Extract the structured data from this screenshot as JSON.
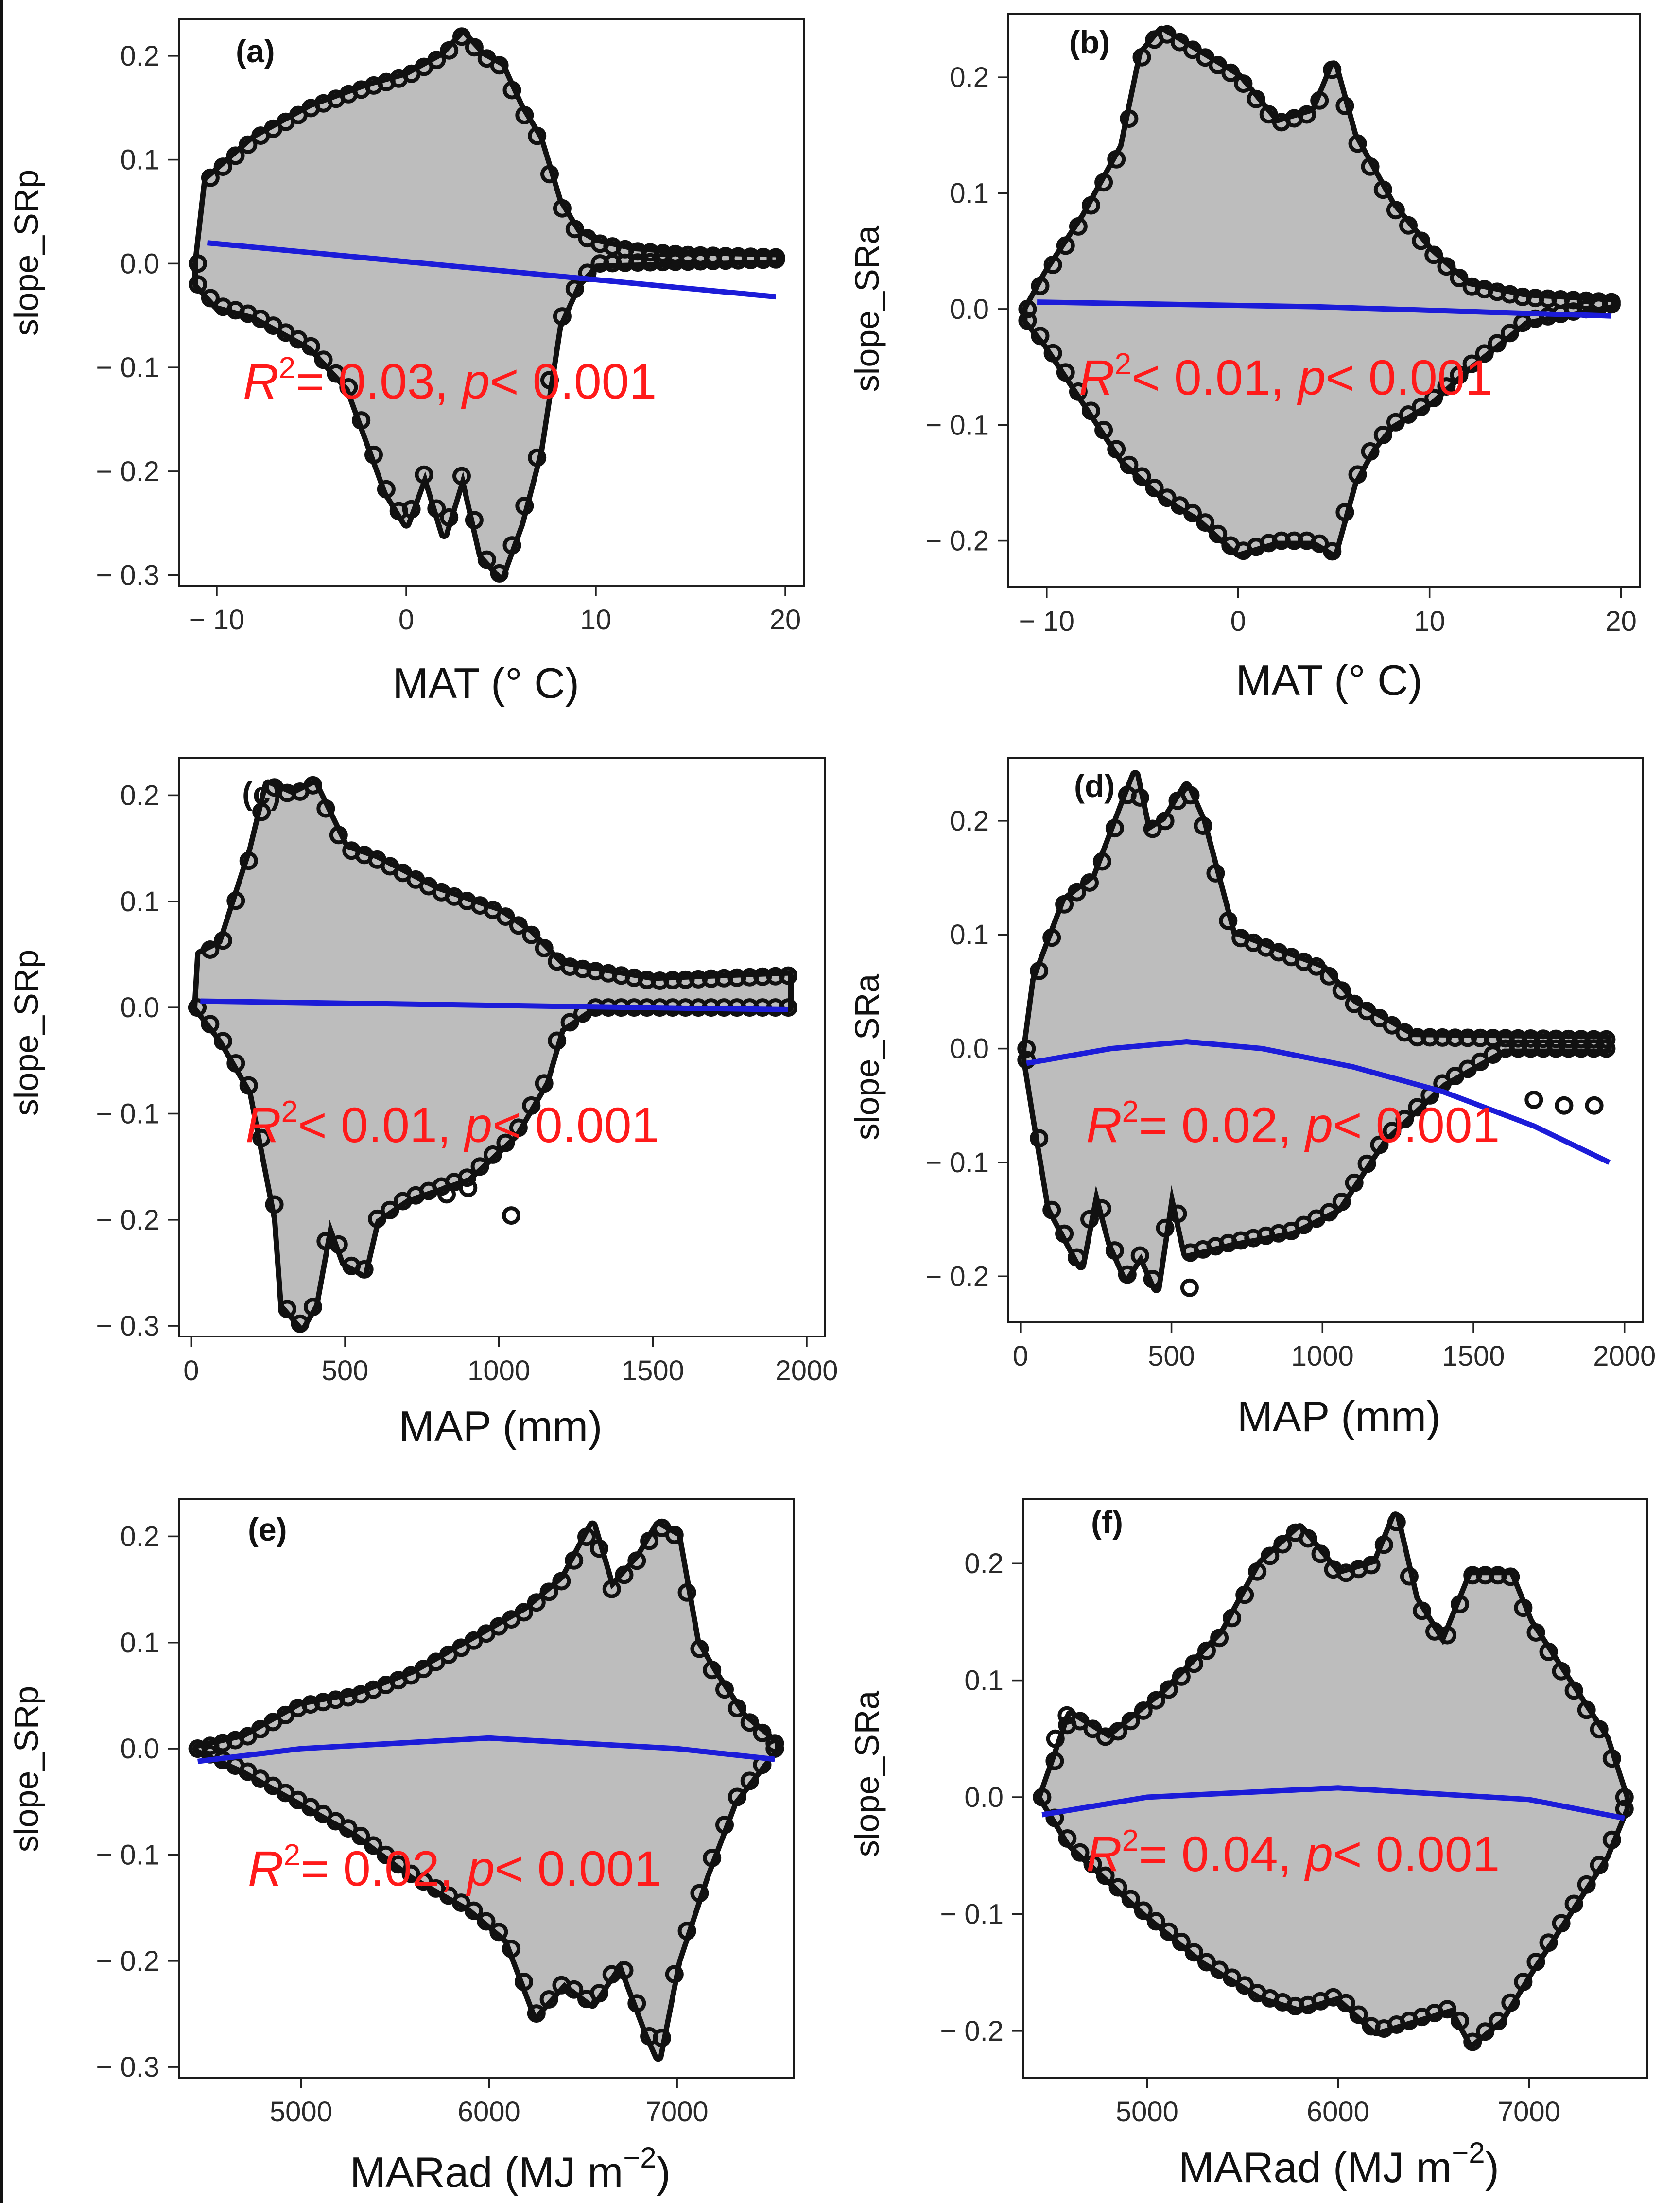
{
  "chart_data": [
    {
      "id": "a",
      "type": "scatter",
      "panel_label": "(a)",
      "xlabel": "MAT (° C)",
      "ylabel": "slope_SRp",
      "xlim": [
        -12,
        21
      ],
      "ylim": [
        -0.31,
        0.235
      ],
      "xticks": [
        -10,
        0,
        10,
        20
      ],
      "xtick_labels": [
        "− 10",
        "0",
        "10",
        "20"
      ],
      "yticks": [
        0.2,
        0.1,
        0.0,
        -0.1,
        -0.2,
        -0.3
      ],
      "ytick_labels": [
        "0.2",
        "0.1",
        "0.0",
        "− 0.1",
        "− 0.2",
        "− 0.3"
      ],
      "annotation": {
        "r2_op": "= 0.03",
        "p_text": "< 0.001"
      },
      "upper_envelope": [
        [
          -11,
          0.0
        ],
        [
          -10.5,
          0.08
        ],
        [
          -8,
          0.12
        ],
        [
          -5,
          0.15
        ],
        [
          -2,
          0.17
        ],
        [
          0,
          0.18
        ],
        [
          2,
          0.2
        ],
        [
          3,
          0.22
        ],
        [
          4,
          0.2
        ],
        [
          5,
          0.19
        ],
        [
          6,
          0.15
        ],
        [
          7,
          0.12
        ],
        [
          8,
          0.06
        ],
        [
          9,
          0.03
        ],
        [
          10,
          0.02
        ],
        [
          12,
          0.012
        ],
        [
          15,
          0.008
        ],
        [
          19.5,
          0.006
        ]
      ],
      "lower_envelope": [
        [
          -11,
          -0.02
        ],
        [
          -10,
          -0.04
        ],
        [
          -8,
          -0.05
        ],
        [
          -5,
          -0.08
        ],
        [
          -3,
          -0.12
        ],
        [
          -1,
          -0.22
        ],
        [
          0,
          -0.25
        ],
        [
          1,
          -0.2
        ],
        [
          2,
          -0.26
        ],
        [
          3,
          -0.2
        ],
        [
          4,
          -0.28
        ],
        [
          5,
          -0.3
        ],
        [
          6,
          -0.25
        ],
        [
          7,
          -0.18
        ],
        [
          8,
          -0.06
        ],
        [
          9,
          -0.02
        ],
        [
          10,
          0.0
        ],
        [
          12,
          0.001
        ],
        [
          15,
          0.002
        ],
        [
          19.5,
          0.004
        ]
      ],
      "fit_line": [
        [
          -10.5,
          0.02
        ],
        [
          19.5,
          -0.032
        ]
      ],
      "outlier_points": []
    },
    {
      "id": "b",
      "type": "scatter",
      "panel_label": "(b)",
      "xlabel": "MAT (° C)",
      "ylabel": "slope_SRa",
      "xlim": [
        -12,
        21
      ],
      "ylim": [
        -0.24,
        0.255
      ],
      "xticks": [
        -10,
        0,
        10,
        20
      ],
      "xtick_labels": [
        "− 10",
        "0",
        "10",
        "20"
      ],
      "yticks": [
        0.2,
        0.1,
        0.0,
        -0.1,
        -0.2
      ],
      "ytick_labels": [
        "0.2",
        "0.1",
        "0.0",
        "− 0.1",
        "− 0.2"
      ],
      "annotation": {
        "r2_op": "< 0.01",
        "p_text": "< 0.001"
      },
      "upper_envelope": [
        [
          -11,
          0.0
        ],
        [
          -10,
          0.03
        ],
        [
          -8,
          0.08
        ],
        [
          -6,
          0.14
        ],
        [
          -5,
          0.22
        ],
        [
          -4,
          0.24
        ],
        [
          -2,
          0.22
        ],
        [
          0,
          0.2
        ],
        [
          2,
          0.16
        ],
        [
          4,
          0.17
        ],
        [
          5,
          0.21
        ],
        [
          6,
          0.15
        ],
        [
          7,
          0.12
        ],
        [
          8,
          0.09
        ],
        [
          10,
          0.05
        ],
        [
          12,
          0.02
        ],
        [
          15,
          0.01
        ],
        [
          19.5,
          0.006
        ]
      ],
      "lower_envelope": [
        [
          -11,
          -0.01
        ],
        [
          -10,
          -0.03
        ],
        [
          -8,
          -0.08
        ],
        [
          -6,
          -0.13
        ],
        [
          -4,
          -0.16
        ],
        [
          -2,
          -0.18
        ],
        [
          0,
          -0.21
        ],
        [
          2,
          -0.2
        ],
        [
          4,
          -0.2
        ],
        [
          5,
          -0.21
        ],
        [
          6,
          -0.15
        ],
        [
          7,
          -0.12
        ],
        [
          8,
          -0.1
        ],
        [
          10,
          -0.08
        ],
        [
          12,
          -0.05
        ],
        [
          15,
          -0.01
        ],
        [
          19.5,
          0.004
        ]
      ],
      "fit_line": [
        [
          -10.5,
          0.006
        ],
        [
          4,
          0.002
        ],
        [
          19.5,
          -0.006
        ]
      ],
      "outlier_points": []
    },
    {
      "id": "c",
      "type": "scatter",
      "panel_label": "(c)",
      "xlabel": "MAP (mm)",
      "ylabel": "slope_SRp",
      "xlim": [
        -40,
        2060
      ],
      "ylim": [
        -0.31,
        0.235
      ],
      "xticks": [
        0,
        500,
        1000,
        1500,
        2000
      ],
      "xtick_labels": [
        "0",
        "500",
        "1000",
        "1500",
        "2000"
      ],
      "yticks": [
        0.2,
        0.1,
        0.0,
        -0.1,
        -0.2,
        -0.3
      ],
      "ytick_labels": [
        "0.2",
        "0.1",
        "0.0",
        "− 0.1",
        "− 0.2",
        "− 0.3"
      ],
      "annotation": {
        "r2_op": "< 0.01",
        "p_text": "< 0.001"
      },
      "upper_envelope": [
        [
          20,
          0.0
        ],
        [
          30,
          0.05
        ],
        [
          100,
          0.06
        ],
        [
          200,
          0.15
        ],
        [
          250,
          0.21
        ],
        [
          330,
          0.2
        ],
        [
          400,
          0.21
        ],
        [
          500,
          0.15
        ],
        [
          600,
          0.14
        ],
        [
          800,
          0.11
        ],
        [
          1000,
          0.09
        ],
        [
          1100,
          0.07
        ],
        [
          1200,
          0.04
        ],
        [
          1500,
          0.025
        ],
        [
          1940,
          0.03
        ]
      ],
      "lower_envelope": [
        [
          20,
          0.0
        ],
        [
          100,
          -0.03
        ],
        [
          200,
          -0.08
        ],
        [
          280,
          -0.2
        ],
        [
          300,
          -0.28
        ],
        [
          360,
          -0.3
        ],
        [
          400,
          -0.28
        ],
        [
          450,
          -0.2
        ],
        [
          500,
          -0.24
        ],
        [
          560,
          -0.25
        ],
        [
          600,
          -0.2
        ],
        [
          700,
          -0.18
        ],
        [
          900,
          -0.16
        ],
        [
          1050,
          -0.12
        ],
        [
          1150,
          -0.07
        ],
        [
          1200,
          -0.02
        ],
        [
          1300,
          0.0
        ],
        [
          1940,
          0.0
        ]
      ],
      "fit_line": [
        [
          30,
          0.006
        ],
        [
          1940,
          -0.002
        ]
      ],
      "outlier_points": [
        [
          830,
          -0.176
        ],
        [
          900,
          -0.17
        ],
        [
          1040,
          -0.196
        ]
      ]
    },
    {
      "id": "d",
      "type": "scatter",
      "panel_label": "(d)",
      "xlabel": "MAP (mm)",
      "ylabel": "slope_SRa",
      "xlim": [
        -40,
        2060
      ],
      "ylim": [
        -0.24,
        0.255
      ],
      "xticks": [
        0,
        500,
        1000,
        1500,
        2000
      ],
      "xtick_labels": [
        "0",
        "500",
        "1000",
        "1500",
        "2000"
      ],
      "yticks": [
        0.2,
        0.1,
        0.0,
        -0.1,
        -0.2
      ],
      "ytick_labels": [
        "0.2",
        "0.1",
        "0.0",
        "− 0.1",
        "− 0.2"
      ],
      "annotation": {
        "r2_op": "= 0.02",
        "p_text": "< 0.001"
      },
      "upper_envelope": [
        [
          20,
          0.0
        ],
        [
          50,
          0.06
        ],
        [
          150,
          0.13
        ],
        [
          250,
          0.15
        ],
        [
          350,
          0.22
        ],
        [
          380,
          0.24
        ],
        [
          420,
          0.19
        ],
        [
          480,
          0.2
        ],
        [
          550,
          0.23
        ],
        [
          600,
          0.2
        ],
        [
          700,
          0.1
        ],
        [
          900,
          0.08
        ],
        [
          1000,
          0.07
        ],
        [
          1100,
          0.04
        ],
        [
          1300,
          0.01
        ],
        [
          1940,
          0.008
        ]
      ],
      "lower_envelope": [
        [
          20,
          -0.01
        ],
        [
          50,
          -0.06
        ],
        [
          100,
          -0.14
        ],
        [
          200,
          -0.19
        ],
        [
          250,
          -0.12
        ],
        [
          300,
          -0.17
        ],
        [
          350,
          -0.2
        ],
        [
          400,
          -0.18
        ],
        [
          450,
          -0.21
        ],
        [
          500,
          -0.12
        ],
        [
          550,
          -0.18
        ],
        [
          700,
          -0.17
        ],
        [
          900,
          -0.16
        ],
        [
          1050,
          -0.14
        ],
        [
          1200,
          -0.08
        ],
        [
          1400,
          -0.03
        ],
        [
          1600,
          0.0
        ],
        [
          1940,
          0.0
        ]
      ],
      "fit_line": [
        [
          20,
          -0.013
        ],
        [
          300,
          0.0
        ],
        [
          550,
          0.006
        ],
        [
          800,
          0.0
        ],
        [
          1100,
          -0.016
        ],
        [
          1400,
          -0.038
        ],
        [
          1700,
          -0.068
        ],
        [
          1950,
          -0.1
        ]
      ],
      "outlier_points": [
        [
          1700,
          -0.045
        ],
        [
          1800,
          -0.05
        ],
        [
          1900,
          -0.05
        ],
        [
          560,
          -0.21
        ]
      ]
    },
    {
      "id": "e",
      "type": "scatter",
      "panel_label": "(e)",
      "xlabel": "MARad (MJ m−2)",
      "ylabel": "slope_SRp",
      "xlim": [
        4350,
        7620
      ],
      "ylim": [
        -0.31,
        0.235
      ],
      "xticks": [
        5000,
        6000,
        7000
      ],
      "xtick_labels": [
        "5000",
        "6000",
        "7000"
      ],
      "yticks": [
        0.2,
        0.1,
        0.0,
        -0.1,
        -0.2,
        -0.3
      ],
      "ytick_labels": [
        "0.2",
        "0.1",
        "0.0",
        "− 0.1",
        "− 0.2",
        "− 0.3"
      ],
      "annotation": {
        "r2_op": "= 0.02",
        "p_text": "< 0.001"
      },
      "upper_envelope": [
        [
          4450,
          0.0
        ],
        [
          4700,
          0.01
        ],
        [
          5000,
          0.04
        ],
        [
          5300,
          0.05
        ],
        [
          5600,
          0.07
        ],
        [
          5900,
          0.1
        ],
        [
          6200,
          0.13
        ],
        [
          6400,
          0.16
        ],
        [
          6550,
          0.21
        ],
        [
          6650,
          0.15
        ],
        [
          6800,
          0.18
        ],
        [
          6900,
          0.21
        ],
        [
          7000,
          0.2
        ],
        [
          7100,
          0.1
        ],
        [
          7200,
          0.07
        ],
        [
          7350,
          0.03
        ],
        [
          7520,
          0.005
        ]
      ],
      "lower_envelope": [
        [
          4450,
          0.0
        ],
        [
          4700,
          -0.02
        ],
        [
          5000,
          -0.05
        ],
        [
          5300,
          -0.08
        ],
        [
          5600,
          -0.12
        ],
        [
          5900,
          -0.15
        ],
        [
          6100,
          -0.18
        ],
        [
          6250,
          -0.25
        ],
        [
          6400,
          -0.22
        ],
        [
          6550,
          -0.24
        ],
        [
          6700,
          -0.2
        ],
        [
          6850,
          -0.27
        ],
        [
          6900,
          -0.29
        ],
        [
          7000,
          -0.2
        ],
        [
          7150,
          -0.12
        ],
        [
          7300,
          -0.05
        ],
        [
          7520,
          0.0
        ]
      ],
      "fit_line": [
        [
          4450,
          -0.012
        ],
        [
          5000,
          0.0
        ],
        [
          6000,
          0.01
        ],
        [
          7000,
          0.0
        ],
        [
          7520,
          -0.01
        ]
      ],
      "outlier_points": []
    },
    {
      "id": "f",
      "type": "scatter",
      "panel_label": "(f)",
      "xlabel": "MARad (MJ m−2)",
      "ylabel": "slope_SRa",
      "xlim": [
        4350,
        7620
      ],
      "ylim": [
        -0.24,
        0.255
      ],
      "xticks": [
        5000,
        6000,
        7000
      ],
      "xtick_labels": [
        "5000",
        "6000",
        "7000"
      ],
      "yticks": [
        0.2,
        0.1,
        0.0,
        -0.1,
        -0.2
      ],
      "ytick_labels": [
        "0.2",
        "0.1",
        "0.0",
        "− 0.1",
        "− 0.2"
      ],
      "annotation": {
        "r2_op": "= 0.04",
        "p_text": "< 0.001"
      },
      "upper_envelope": [
        [
          4450,
          0.0
        ],
        [
          4600,
          0.07
        ],
        [
          4800,
          0.05
        ],
        [
          5100,
          0.09
        ],
        [
          5400,
          0.14
        ],
        [
          5600,
          0.2
        ],
        [
          5800,
          0.23
        ],
        [
          6000,
          0.19
        ],
        [
          6200,
          0.2
        ],
        [
          6300,
          0.24
        ],
        [
          6400,
          0.17
        ],
        [
          6550,
          0.13
        ],
        [
          6700,
          0.19
        ],
        [
          6900,
          0.19
        ],
        [
          7000,
          0.15
        ],
        [
          7200,
          0.1
        ],
        [
          7400,
          0.05
        ],
        [
          7500,
          0.0
        ]
      ],
      "lower_envelope": [
        [
          4450,
          0.0
        ],
        [
          4600,
          -0.04
        ],
        [
          4800,
          -0.07
        ],
        [
          5000,
          -0.1
        ],
        [
          5300,
          -0.14
        ],
        [
          5600,
          -0.17
        ],
        [
          5800,
          -0.18
        ],
        [
          6000,
          -0.17
        ],
        [
          6200,
          -0.2
        ],
        [
          6400,
          -0.19
        ],
        [
          6600,
          -0.18
        ],
        [
          6700,
          -0.21
        ],
        [
          6850,
          -0.19
        ],
        [
          7000,
          -0.15
        ],
        [
          7200,
          -0.1
        ],
        [
          7400,
          -0.05
        ],
        [
          7500,
          -0.01
        ]
      ],
      "fit_line": [
        [
          4450,
          -0.015
        ],
        [
          5000,
          0.0
        ],
        [
          6000,
          0.008
        ],
        [
          7000,
          -0.002
        ],
        [
          7500,
          -0.018
        ]
      ],
      "outlier_points": [
        [
          4580,
          0.07
        ],
        [
          4520,
          0.05
        ]
      ]
    }
  ]
}
